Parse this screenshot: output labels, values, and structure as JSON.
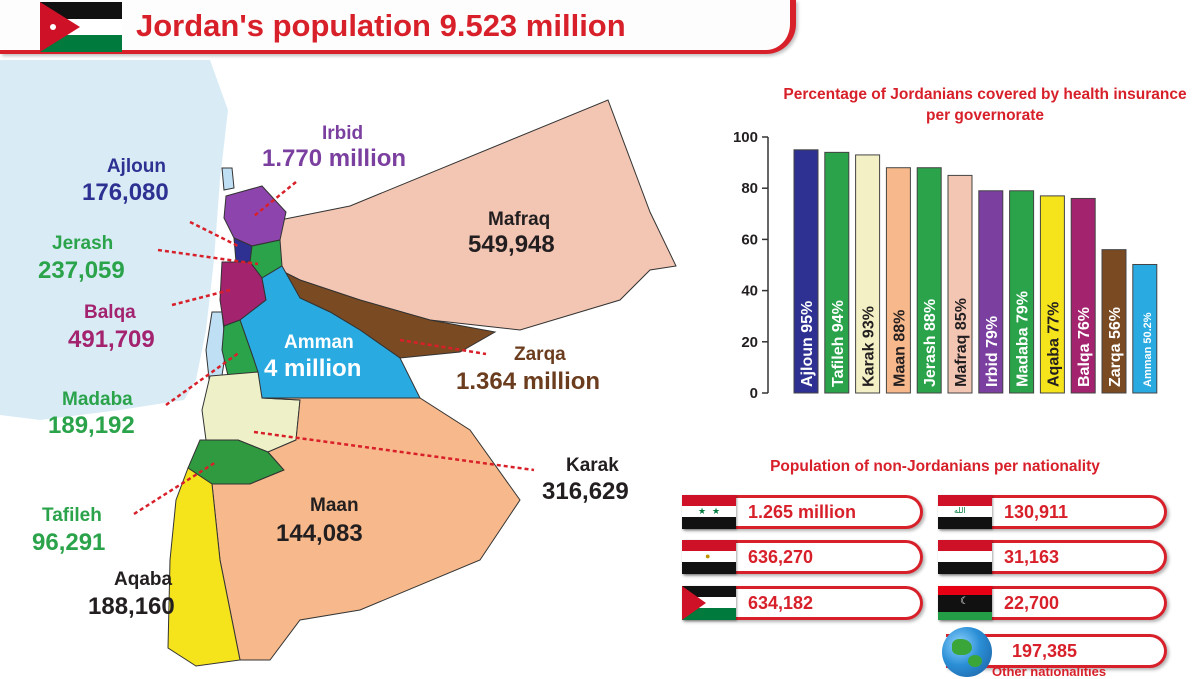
{
  "header": {
    "title": "Jordan's population 9.523 million"
  },
  "map": {
    "governorates": [
      {
        "name": "Ajloun",
        "value": "176,080",
        "color": "#2e3192"
      },
      {
        "name": "Irbid",
        "value": "1.770 million",
        "color": "#7b3fa0"
      },
      {
        "name": "Mafraq",
        "value": "549,948",
        "color": "#231f20"
      },
      {
        "name": "Jerash",
        "value": "237,059",
        "color": "#2aa34a"
      },
      {
        "name": "Balqa",
        "value": "491,709",
        "color": "#a3236f"
      },
      {
        "name": "Amman",
        "value": "4 million",
        "color": "#ffffff"
      },
      {
        "name": "Zarqa",
        "value": "1.364 million",
        "color": "#6b3d1e"
      },
      {
        "name": "Madaba",
        "value": "189,192",
        "color": "#2aa34a"
      },
      {
        "name": "Karak",
        "value": "316,629",
        "color": "#231f20"
      },
      {
        "name": "Maan",
        "value": "144,083",
        "color": "#231f20"
      },
      {
        "name": "Tafileh",
        "value": "96,291",
        "color": "#2aa34a"
      },
      {
        "name": "Aqaba",
        "value": "188,160",
        "color": "#231f20"
      }
    ]
  },
  "chart_data": {
    "type": "bar",
    "title": "Percentage of Jordanians covered by health insurance per governorate",
    "categories": [
      "Ajloun",
      "Tafileh",
      "Karak",
      "Maan",
      "Jerash",
      "Mafraq",
      "Irbid",
      "Madaba",
      "Aqaba",
      "Balqa",
      "Zarqa",
      "Amman"
    ],
    "values": [
      95,
      94,
      93,
      88,
      88,
      85,
      79,
      79,
      77,
      76,
      56,
      50.2
    ],
    "bar_labels": [
      "Ajloun 95%",
      "Tafileh 94%",
      "Karak 93%",
      "Maan 88%",
      "Jerash 88%",
      "Mafraq 85%",
      "Irbid 79%",
      "Madaba 79%",
      "Aqaba 77%",
      "Balqa 76%",
      "Zarqa 56%",
      "Amman 50.2%"
    ],
    "colors": [
      "#2e3192",
      "#2aa34a",
      "#f2f0c4",
      "#f7b98b",
      "#2aa34a",
      "#f3c6b4",
      "#7b3fa0",
      "#2aa34a",
      "#f5e31b",
      "#a3236f",
      "#7a4a22",
      "#29abe2"
    ],
    "label_colors": [
      "#ffffff",
      "#ffffff",
      "#231f20",
      "#231f20",
      "#ffffff",
      "#231f20",
      "#ffffff",
      "#ffffff",
      "#231f20",
      "#ffffff",
      "#ffffff",
      "#ffffff"
    ],
    "ylim": [
      0,
      100
    ],
    "yticks": [
      "0",
      "20",
      "40",
      "60",
      "80",
      "100"
    ],
    "grid": false,
    "legend": "none"
  },
  "nationalities": {
    "title": "Population of non-Jordanians per nationality",
    "items": [
      {
        "flag": "syria-flag",
        "value": "1.265 million"
      },
      {
        "flag": "egypt-flag",
        "value": "636,270"
      },
      {
        "flag": "palestine-flag",
        "value": "634,182"
      },
      {
        "flag": "iraq-flag",
        "value": "130,911"
      },
      {
        "flag": "yemen-flag",
        "value": "31,163"
      },
      {
        "flag": "libya-flag",
        "value": "22,700"
      },
      {
        "flag": "globe-icon",
        "value": "197,385",
        "label": "Other nationalities"
      }
    ]
  }
}
